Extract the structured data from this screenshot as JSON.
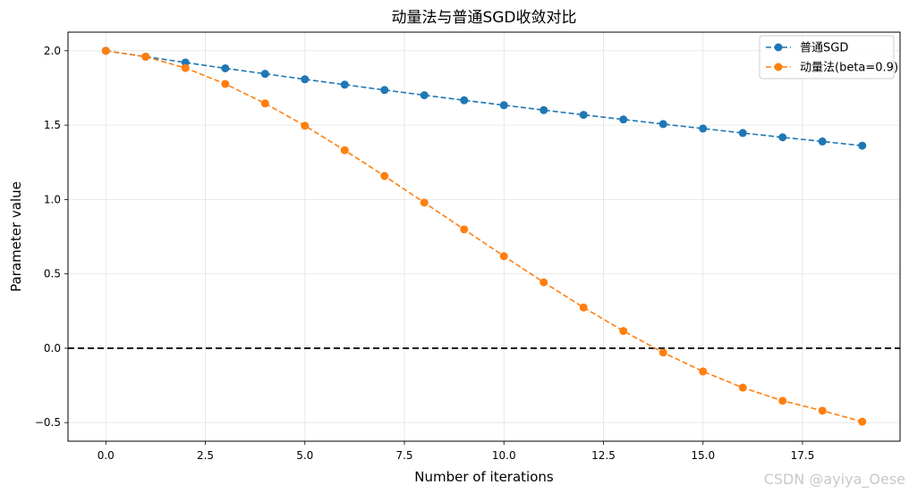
{
  "chart_data": {
    "type": "line",
    "title": "动量法与普通SGD收敛对比",
    "xlabel": "Number of iterations",
    "ylabel": "Parameter value",
    "xlim": [
      -0.95,
      19.95
    ],
    "ylim": [
      -0.625,
      2.125
    ],
    "xticks": [
      0.0,
      2.5,
      5.0,
      7.5,
      10.0,
      12.5,
      15.0,
      17.5
    ],
    "xtick_labels": [
      "0.0",
      "2.5",
      "5.0",
      "7.5",
      "10.0",
      "12.5",
      "15.0",
      "17.5"
    ],
    "yticks": [
      -0.5,
      0.0,
      0.5,
      1.0,
      1.5,
      2.0
    ],
    "ytick_labels": [
      "−0.5",
      "0.0",
      "0.5",
      "1.0",
      "1.5",
      "2.0"
    ],
    "grid": true,
    "legend_position": "top-right",
    "hline": {
      "y": 0.0,
      "color": "#000000",
      "style": "dashed"
    },
    "x": [
      0,
      1,
      2,
      3,
      4,
      5,
      6,
      7,
      8,
      9,
      10,
      11,
      12,
      13,
      14,
      15,
      16,
      17,
      18,
      19
    ],
    "series": [
      {
        "name": "普通SGD",
        "color": "#1f77b4",
        "values": [
          2.0,
          1.96,
          1.921,
          1.882,
          1.845,
          1.808,
          1.772,
          1.736,
          1.701,
          1.667,
          1.634,
          1.601,
          1.569,
          1.538,
          1.507,
          1.477,
          1.447,
          1.418,
          1.39,
          1.362
        ]
      },
      {
        "name": "动量法(beta=0.9)",
        "color": "#ff7f0e",
        "values": [
          2.0,
          1.96,
          1.884,
          1.777,
          1.646,
          1.496,
          1.331,
          1.158,
          0.979,
          0.799,
          0.619,
          0.443,
          0.274,
          0.116,
          -0.029,
          -0.156,
          -0.265,
          -0.353,
          -0.42,
          -0.494
        ]
      }
    ]
  },
  "watermark": "CSDN @ayiya_Oese"
}
